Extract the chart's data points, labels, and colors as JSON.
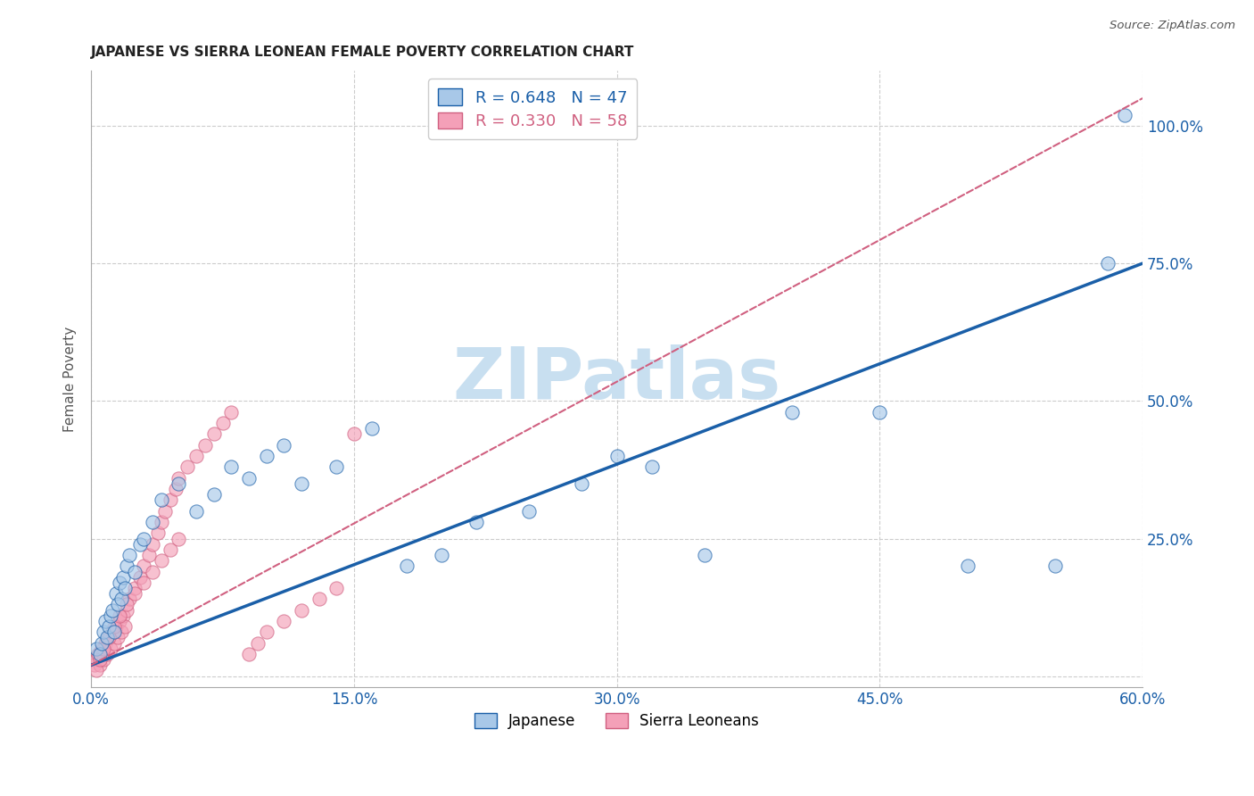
{
  "title": "JAPANESE VS SIERRA LEONEAN FEMALE POVERTY CORRELATION CHART",
  "source": "Source: ZipAtlas.com",
  "ylabel": "Female Poverty",
  "xlim": [
    0.0,
    0.6
  ],
  "ylim": [
    -0.02,
    1.1
  ],
  "xticks": [
    0.0,
    0.15,
    0.3,
    0.45,
    0.6
  ],
  "xtick_labels": [
    "0.0%",
    "15.0%",
    "30.0%",
    "45.0%",
    "60.0%"
  ],
  "yticks": [
    0.0,
    0.25,
    0.5,
    0.75,
    1.0
  ],
  "ytick_labels": [
    "",
    "25.0%",
    "50.0%",
    "75.0%",
    "100.0%"
  ],
  "blue_color": "#a8c8e8",
  "pink_color": "#f4a0b8",
  "blue_line_color": "#1a5fa8",
  "pink_line_color": "#d06080",
  "tick_label_color": "#1a5fa8",
  "watermark_color": "#c8dff0",
  "watermark": "ZIPatlas",
  "legend_R_blue": "R = 0.648",
  "legend_N_blue": "N = 47",
  "legend_R_pink": "R = 0.330",
  "legend_N_pink": "N = 58",
  "blue_scatter_x": [
    0.003,
    0.005,
    0.006,
    0.007,
    0.008,
    0.009,
    0.01,
    0.011,
    0.012,
    0.013,
    0.014,
    0.015,
    0.016,
    0.017,
    0.018,
    0.019,
    0.02,
    0.022,
    0.025,
    0.028,
    0.03,
    0.035,
    0.04,
    0.05,
    0.06,
    0.07,
    0.08,
    0.09,
    0.1,
    0.11,
    0.12,
    0.14,
    0.16,
    0.18,
    0.2,
    0.22,
    0.25,
    0.28,
    0.3,
    0.32,
    0.35,
    0.4,
    0.45,
    0.5,
    0.55,
    0.58,
    0.59
  ],
  "blue_scatter_y": [
    0.05,
    0.04,
    0.06,
    0.08,
    0.1,
    0.07,
    0.09,
    0.11,
    0.12,
    0.08,
    0.15,
    0.13,
    0.17,
    0.14,
    0.18,
    0.16,
    0.2,
    0.22,
    0.19,
    0.24,
    0.25,
    0.28,
    0.32,
    0.35,
    0.3,
    0.33,
    0.38,
    0.36,
    0.4,
    0.42,
    0.35,
    0.38,
    0.45,
    0.2,
    0.22,
    0.28,
    0.3,
    0.35,
    0.4,
    0.38,
    0.22,
    0.48,
    0.48,
    0.2,
    0.2,
    0.75,
    1.02
  ],
  "pink_scatter_x": [
    0.002,
    0.003,
    0.004,
    0.005,
    0.006,
    0.007,
    0.008,
    0.009,
    0.01,
    0.011,
    0.012,
    0.013,
    0.014,
    0.015,
    0.016,
    0.017,
    0.018,
    0.019,
    0.02,
    0.022,
    0.025,
    0.028,
    0.03,
    0.033,
    0.035,
    0.038,
    0.04,
    0.042,
    0.045,
    0.048,
    0.05,
    0.055,
    0.06,
    0.065,
    0.07,
    0.075,
    0.08,
    0.09,
    0.095,
    0.1,
    0.11,
    0.12,
    0.13,
    0.14,
    0.15,
    0.003,
    0.005,
    0.007,
    0.01,
    0.013,
    0.016,
    0.02,
    0.025,
    0.03,
    0.035,
    0.04,
    0.045,
    0.05
  ],
  "pink_scatter_y": [
    0.02,
    0.03,
    0.04,
    0.02,
    0.05,
    0.03,
    0.06,
    0.04,
    0.07,
    0.05,
    0.08,
    0.06,
    0.09,
    0.07,
    0.1,
    0.08,
    0.11,
    0.09,
    0.12,
    0.14,
    0.16,
    0.18,
    0.2,
    0.22,
    0.24,
    0.26,
    0.28,
    0.3,
    0.32,
    0.34,
    0.36,
    0.38,
    0.4,
    0.42,
    0.44,
    0.46,
    0.48,
    0.04,
    0.06,
    0.08,
    0.1,
    0.12,
    0.14,
    0.16,
    0.44,
    0.01,
    0.03,
    0.05,
    0.07,
    0.09,
    0.11,
    0.13,
    0.15,
    0.17,
    0.19,
    0.21,
    0.23,
    0.25
  ],
  "blue_line_x0": 0.0,
  "blue_line_y0": 0.02,
  "blue_line_x1": 0.6,
  "blue_line_y1": 0.75,
  "pink_line_x0": 0.0,
  "pink_line_y0": 0.02,
  "pink_line_x1": 0.6,
  "pink_line_y1": 1.05
}
